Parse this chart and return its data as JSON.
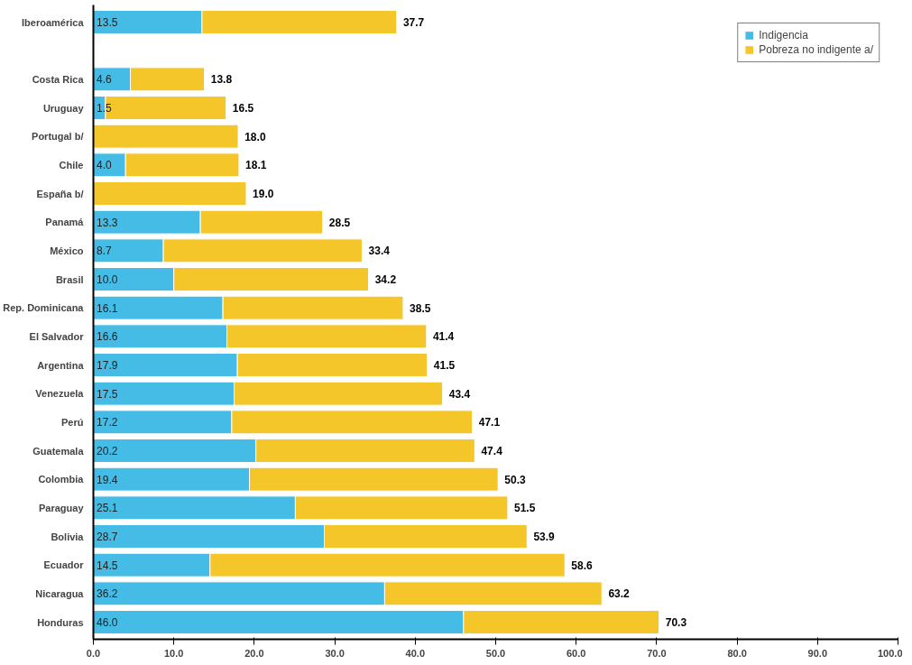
{
  "chart_data": {
    "type": "bar",
    "orientation": "horizontal",
    "stacked": true,
    "categories": [
      "Iberoamérica",
      null,
      "Costa Rica",
      "Uruguay",
      "Portugal b/",
      "Chile",
      "España b/",
      "Panamá",
      "México",
      "Brasil",
      "Rep. Dominicana",
      "El Salvador",
      "Argentina",
      "Venezuela",
      "Perú",
      "Guatemala",
      "Colombia",
      "Paraguay",
      "Bolivia",
      "Ecuador",
      "Nicaragua",
      "Honduras"
    ],
    "series": [
      {
        "name": "Indigencia",
        "color": "#45bce5",
        "values": [
          13.5,
          null,
          4.6,
          1.5,
          null,
          4.0,
          null,
          13.3,
          8.7,
          10.0,
          16.1,
          16.6,
          17.9,
          17.5,
          17.2,
          20.2,
          19.4,
          25.1,
          28.7,
          14.5,
          36.2,
          46.0
        ],
        "value_labels": [
          "13.5",
          null,
          "4.6",
          "1.5",
          null,
          "4.0",
          null,
          "13.3",
          "8.7",
          "10.0",
          "16.1",
          "16.6",
          "17.9",
          "17.5",
          "17.2",
          "20.2",
          "19.4",
          "25.1",
          "28.7",
          "14.5",
          "36.2",
          "46.0"
        ]
      },
      {
        "name": "Pobreza no indigente a/",
        "color": "#f4c62a",
        "values": [
          24.2,
          null,
          9.2,
          15.0,
          18.0,
          14.1,
          19.0,
          15.2,
          24.7,
          24.2,
          22.4,
          24.8,
          23.6,
          25.9,
          29.9,
          27.2,
          30.9,
          26.4,
          25.2,
          44.1,
          27.0,
          24.3
        ]
      }
    ],
    "totals": [
      "37.7",
      null,
      "13.8",
      "16.5",
      "18.0",
      "18.1",
      "19.0",
      "28.5",
      "33.4",
      "34.2",
      "38.5",
      "41.4",
      "41.5",
      "43.4",
      "47.1",
      "47.4",
      "50.3",
      "51.5",
      "53.9",
      "58.6",
      "63.2",
      "70.3"
    ],
    "xlim": [
      0,
      100
    ],
    "xticks": [
      {
        "value": 0,
        "label": "0.0"
      },
      {
        "value": 10,
        "label": "10.0"
      },
      {
        "value": 20,
        "label": "20.0"
      },
      {
        "value": 30,
        "label": "30.0"
      },
      {
        "value": 40,
        "label": "40.0"
      },
      {
        "value": 50,
        "label": "50.0"
      },
      {
        "value": 60,
        "label": "60.0"
      },
      {
        "value": 70,
        "label": "70.0"
      },
      {
        "value": 80,
        "label": "80.0"
      },
      {
        "value": 90,
        "label": "90.0"
      },
      {
        "value": 100,
        "label": "100.0"
      }
    ],
    "legend": "top right",
    "grid": false
  }
}
